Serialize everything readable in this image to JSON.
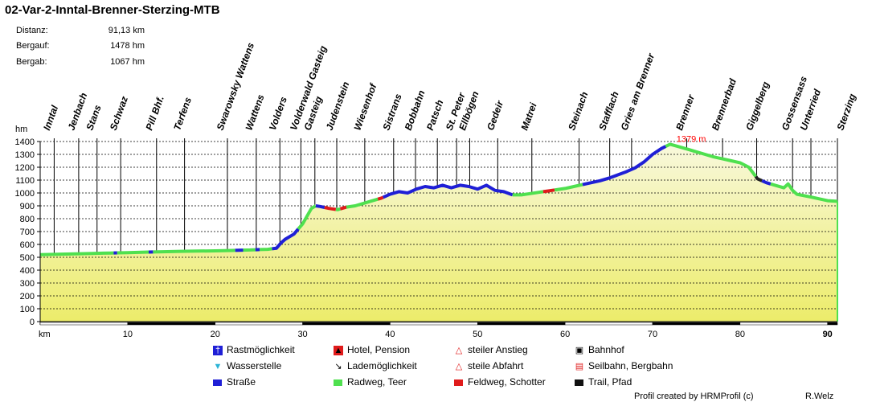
{
  "title": "02-Var-2-Inntal-Brenner-Sterzing-MTB",
  "stats": [
    {
      "label": "Distanz:",
      "value": "91,13 km"
    },
    {
      "label": "Bergauf:",
      "value": "1478 hm"
    },
    {
      "label": "Bergab:",
      "value": "1067 hm"
    }
  ],
  "chart_data": {
    "type": "area",
    "ylabel": "hm",
    "xlabel": "km",
    "ylim": [
      0,
      1400
    ],
    "xlim": [
      0,
      91.13
    ],
    "y_ticks": [
      0,
      100,
      200,
      300,
      400,
      500,
      600,
      700,
      800,
      900,
      1000,
      1100,
      1200,
      1300,
      1400
    ],
    "x_ticks": [
      10,
      20,
      30,
      40,
      50,
      60,
      70,
      80,
      90
    ],
    "grid": true,
    "max_annotation": {
      "x": 72.0,
      "y": 1379,
      "label": "1379 m"
    },
    "profile": [
      [
        0,
        520
      ],
      [
        2,
        524
      ],
      [
        4,
        527
      ],
      [
        6,
        530
      ],
      [
        8,
        533
      ],
      [
        10,
        536
      ],
      [
        12,
        540
      ],
      [
        14,
        543
      ],
      [
        16,
        546
      ],
      [
        18,
        548
      ],
      [
        20,
        550
      ],
      [
        22,
        553
      ],
      [
        24,
        557
      ],
      [
        26,
        562
      ],
      [
        27,
        570
      ],
      [
        27.5,
        610
      ],
      [
        28,
        640
      ],
      [
        29,
        680
      ],
      [
        30,
        760
      ],
      [
        31,
        880
      ],
      [
        31.5,
        900
      ],
      [
        32,
        895
      ],
      [
        33,
        880
      ],
      [
        34,
        870
      ],
      [
        35,
        890
      ],
      [
        36,
        900
      ],
      [
        37,
        920
      ],
      [
        38,
        940
      ],
      [
        39,
        960
      ],
      [
        40,
        990
      ],
      [
        41,
        1010
      ],
      [
        42,
        1000
      ],
      [
        43,
        1030
      ],
      [
        44,
        1050
      ],
      [
        45,
        1040
      ],
      [
        46,
        1060
      ],
      [
        47,
        1040
      ],
      [
        48,
        1060
      ],
      [
        49,
        1050
      ],
      [
        50,
        1030
      ],
      [
        51,
        1060
      ],
      [
        52,
        1020
      ],
      [
        53,
        1010
      ],
      [
        54,
        985
      ],
      [
        55,
        985
      ],
      [
        56,
        995
      ],
      [
        57,
        1005
      ],
      [
        58,
        1015
      ],
      [
        59,
        1025
      ],
      [
        60,
        1035
      ],
      [
        61,
        1050
      ],
      [
        62,
        1065
      ],
      [
        63,
        1080
      ],
      [
        64,
        1095
      ],
      [
        65,
        1115
      ],
      [
        66,
        1140
      ],
      [
        67,
        1165
      ],
      [
        68,
        1195
      ],
      [
        69,
        1240
      ],
      [
        70,
        1300
      ],
      [
        71,
        1345
      ],
      [
        72,
        1379
      ],
      [
        73,
        1360
      ],
      [
        74,
        1340
      ],
      [
        75,
        1320
      ],
      [
        76,
        1300
      ],
      [
        77,
        1280
      ],
      [
        78,
        1265
      ],
      [
        79,
        1250
      ],
      [
        80,
        1235
      ],
      [
        81,
        1200
      ],
      [
        82,
        1110
      ],
      [
        83,
        1080
      ],
      [
        84,
        1060
      ],
      [
        85,
        1040
      ],
      [
        85.5,
        1070
      ],
      [
        86,
        1020
      ],
      [
        86.5,
        990
      ],
      [
        88,
        970
      ],
      [
        89,
        955
      ],
      [
        90,
        940
      ],
      [
        91.13,
        935
      ]
    ],
    "surface_segments": [
      {
        "from": 0,
        "to": 8.4,
        "surface": "Radweg, Teer"
      },
      {
        "from": 8.4,
        "to": 8.8,
        "surface": "Straße"
      },
      {
        "from": 8.8,
        "to": 12.4,
        "surface": "Radweg, Teer"
      },
      {
        "from": 12.4,
        "to": 12.9,
        "surface": "Straße"
      },
      {
        "from": 12.9,
        "to": 22.3,
        "surface": "Radweg, Teer"
      },
      {
        "from": 22.3,
        "to": 23.2,
        "surface": "Straße"
      },
      {
        "from": 23.2,
        "to": 24.6,
        "surface": "Radweg, Teer"
      },
      {
        "from": 24.6,
        "to": 25.1,
        "surface": "Straße"
      },
      {
        "from": 25.1,
        "to": 26.5,
        "surface": "Radweg, Teer"
      },
      {
        "from": 26.5,
        "to": 29.5,
        "surface": "Straße"
      },
      {
        "from": 29.5,
        "to": 31.5,
        "surface": "Radweg, Teer"
      },
      {
        "from": 31.5,
        "to": 32.5,
        "surface": "Straße"
      },
      {
        "from": 32.5,
        "to": 33.8,
        "surface": "Feldweg, Schotter"
      },
      {
        "from": 33.8,
        "to": 34.3,
        "surface": "Radweg, Teer"
      },
      {
        "from": 34.3,
        "to": 35.0,
        "surface": "Feldweg, Schotter"
      },
      {
        "from": 35.0,
        "to": 38.6,
        "surface": "Radweg, Teer"
      },
      {
        "from": 38.6,
        "to": 39.2,
        "surface": "Feldweg, Schotter"
      },
      {
        "from": 39.2,
        "to": 54.0,
        "surface": "Straße"
      },
      {
        "from": 54.0,
        "to": 57.5,
        "surface": "Radweg, Teer"
      },
      {
        "from": 57.5,
        "to": 58.8,
        "surface": "Feldweg, Schotter"
      },
      {
        "from": 58.8,
        "to": 62.0,
        "surface": "Radweg, Teer"
      },
      {
        "from": 62.0,
        "to": 71.5,
        "surface": "Straße"
      },
      {
        "from": 71.5,
        "to": 81.8,
        "surface": "Radweg, Teer"
      },
      {
        "from": 81.8,
        "to": 82.5,
        "surface": "Trail, Pfad"
      },
      {
        "from": 82.5,
        "to": 83.5,
        "surface": "Straße"
      },
      {
        "from": 83.5,
        "to": 91.13,
        "surface": "Radweg, Teer"
      }
    ],
    "waypoints": [
      {
        "name": "Inntal",
        "km": 1.6
      },
      {
        "name": "Jenbach",
        "km": 4.4
      },
      {
        "name": "Stans",
        "km": 6.5
      },
      {
        "name": "Schwaz",
        "km": 9.2
      },
      {
        "name": "Pill Bhf.",
        "km": 13.3
      },
      {
        "name": "Terfens",
        "km": 16.5
      },
      {
        "name": "Swarowsky Wattens",
        "km": 21.4
      },
      {
        "name": "Wattens",
        "km": 24.7
      },
      {
        "name": "Volders",
        "km": 27.4
      },
      {
        "name": "Volderwald Gasteig",
        "km": 29.8
      },
      {
        "name": "Gasteig",
        "km": 31.4
      },
      {
        "name": "Judenstein",
        "km": 33.9
      },
      {
        "name": "Wiesenhof",
        "km": 37.1
      },
      {
        "name": "Sistrans",
        "km": 40.4
      },
      {
        "name": "Bobbahn",
        "km": 42.9
      },
      {
        "name": "Patsch",
        "km": 45.4
      },
      {
        "name": "St. Peter",
        "km": 47.6
      },
      {
        "name": "Ellbögen",
        "km": 49.1
      },
      {
        "name": "Gedeir",
        "km": 52.3
      },
      {
        "name": "Matrei",
        "km": 56.2
      },
      {
        "name": "Steinach",
        "km": 61.6
      },
      {
        "name": "Stafflach",
        "km": 65.1
      },
      {
        "name": "Gries am Brenner",
        "km": 67.6
      },
      {
        "name": "Brenner",
        "km": 73.9
      },
      {
        "name": "Brennerbad",
        "km": 78.0
      },
      {
        "name": "Giggelberg",
        "km": 81.9
      },
      {
        "name": "Gossensass",
        "km": 86.0
      },
      {
        "name": "Unterried",
        "km": 88.1
      },
      {
        "name": "Sterzing",
        "km": 92.3
      }
    ],
    "colors": {
      "Straße": "#1f1fd6",
      "Radweg, Teer": "#4fe04f",
      "Feldweg, Schotter": "#e01b1b",
      "Trail, Pfad": "#222222",
      "fill_top": "#f8f8dc",
      "fill_bottom": "#ecec6a",
      "max_label": "#ff0000"
    }
  },
  "legend": [
    {
      "label": "Rastmöglichkeit",
      "icon": "cutlery-icon"
    },
    {
      "label": "Hotel, Pension",
      "icon": "hotel-icon"
    },
    {
      "label": "steiler Anstieg",
      "icon": "steep-climb-icon"
    },
    {
      "label": "Bahnhof",
      "icon": "train-icon"
    },
    {
      "label": "Wasserstelle",
      "icon": "water-tap-icon"
    },
    {
      "label": "Lademöglichkeit",
      "icon": "charging-icon"
    },
    {
      "label": "steile Abfahrt",
      "icon": "steep-descent-icon"
    },
    {
      "label": "Seilbahn, Bergbahn",
      "icon": "cable-car-icon"
    },
    {
      "label": "Straße",
      "color": "#1f1fd6"
    },
    {
      "label": "Radweg, Teer",
      "color": "#4fe04f"
    },
    {
      "label": "Feldweg, Schotter",
      "color": "#e01b1b"
    },
    {
      "label": "Trail, Pfad",
      "color": "#111111"
    }
  ],
  "footer": {
    "credit": "Profil created by HRMProfil (c)",
    "author": "R.Welz"
  }
}
